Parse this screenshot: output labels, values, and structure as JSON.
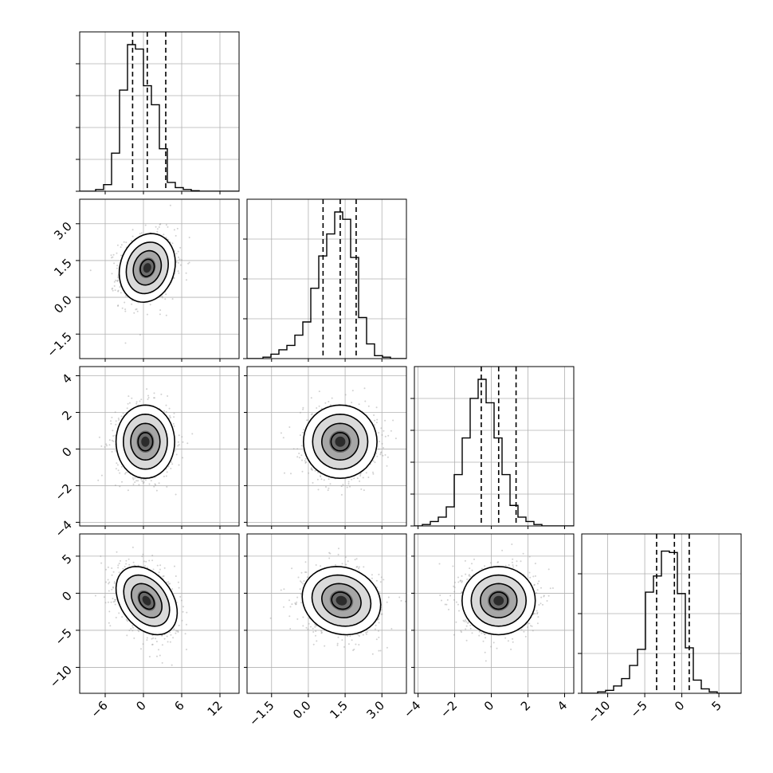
{
  "colors": {
    "background": "#ffffff",
    "line": "#000000",
    "grid": "#b0b0b0",
    "sample_points": "#9a9a9a",
    "density_dark": "#000000"
  },
  "chart_data": {
    "type": "corner",
    "grid": true,
    "n_params": 4,
    "bins": 20,
    "labels": [
      "",
      "",
      "",
      ""
    ],
    "ranges": [
      [
        -10,
        15
      ],
      [
        -2.5,
        4.0
      ],
      [
        -4.2,
        4.5
      ],
      [
        -13.5,
        8.0
      ]
    ],
    "ticks": [
      [
        -6,
        0,
        6,
        12
      ],
      [
        -1.5,
        0.0,
        1.5,
        3.0
      ],
      [
        -4,
        -2,
        0,
        2,
        4
      ],
      [
        -10,
        -5,
        0,
        5
      ]
    ],
    "tick_labels": [
      [
        "−6",
        "0",
        "6",
        "12"
      ],
      [
        "−1.5",
        "0.0",
        "1.5",
        "3.0"
      ],
      [
        "−4",
        "−2",
        "0",
        "2",
        "4"
      ],
      [
        "−10",
        "−5",
        "0",
        "5"
      ]
    ],
    "diagonal_tick_counts": [
      5,
      4,
      5,
      4
    ],
    "quantile_levels": [
      0.16,
      0.5,
      0.84
    ],
    "quantiles": [
      [
        -1.7,
        0.6,
        3.5
      ],
      [
        0.6,
        1.3,
        1.95
      ],
      [
        -0.55,
        0.4,
        1.35
      ],
      [
        -3.4,
        -1.0,
        1.0
      ]
    ],
    "marginals": [
      {
        "edges_start": -10,
        "bin_width": 1.25,
        "counts": [
          0,
          0,
          0.012,
          0.045,
          0.26,
          0.69,
          1.0,
          0.97,
          0.72,
          0.59,
          0.29,
          0.06,
          0.025,
          0.012,
          0.004,
          0,
          0,
          0,
          0,
          0
        ]
      },
      {
        "edges_start": -2.5,
        "bin_width": 0.325,
        "counts": [
          0,
          0,
          0.01,
          0.03,
          0.06,
          0.09,
          0.16,
          0.25,
          0.48,
          0.7,
          0.85,
          1.0,
          0.95,
          0.69,
          0.28,
          0.1,
          0.02,
          0.01,
          0,
          0
        ]
      },
      {
        "edges_start": -4.2,
        "bin_width": 0.435,
        "counts": [
          0,
          0.01,
          0.03,
          0.06,
          0.13,
          0.35,
          0.6,
          0.87,
          1.0,
          0.84,
          0.6,
          0.35,
          0.14,
          0.06,
          0.03,
          0.01,
          0,
          0,
          0,
          0
        ]
      },
      {
        "edges_start": -13.5,
        "bin_width": 1.075,
        "counts": [
          0,
          0,
          0.01,
          0.02,
          0.05,
          0.1,
          0.19,
          0.3,
          0.69,
          0.8,
          0.97,
          0.96,
          0.68,
          0.31,
          0.09,
          0.03,
          0.01,
          0,
          0,
          0
        ]
      }
    ],
    "pairs": [
      {
        "i": 1,
        "j": 0,
        "mean": [
          0.6,
          1.2
        ],
        "sigma": [
          2.2,
          0.7
        ],
        "rho": 0.15
      },
      {
        "i": 2,
        "j": 0,
        "mean": [
          0.3,
          0.4
        ],
        "sigma": [
          2.3,
          1.0
        ],
        "rho": 0.0
      },
      {
        "i": 2,
        "j": 1,
        "mean": [
          1.3,
          0.4
        ],
        "sigma": [
          0.75,
          1.0
        ],
        "rho": 0.0
      },
      {
        "i": 3,
        "j": 0,
        "mean": [
          0.5,
          -1.0
        ],
        "sigma": [
          2.4,
          2.3
        ],
        "rho": -0.35
      },
      {
        "i": 3,
        "j": 1,
        "mean": [
          1.35,
          -1.0
        ],
        "sigma": [
          0.8,
          2.3
        ],
        "rho": -0.12
      },
      {
        "i": 3,
        "j": 2,
        "mean": [
          0.4,
          -1.0
        ],
        "sigma": [
          1.0,
          2.3
        ],
        "rho": 0.0
      }
    ],
    "contour_levels_sigma": [
      0.5,
      1.0,
      1.5,
      2.0
    ]
  }
}
